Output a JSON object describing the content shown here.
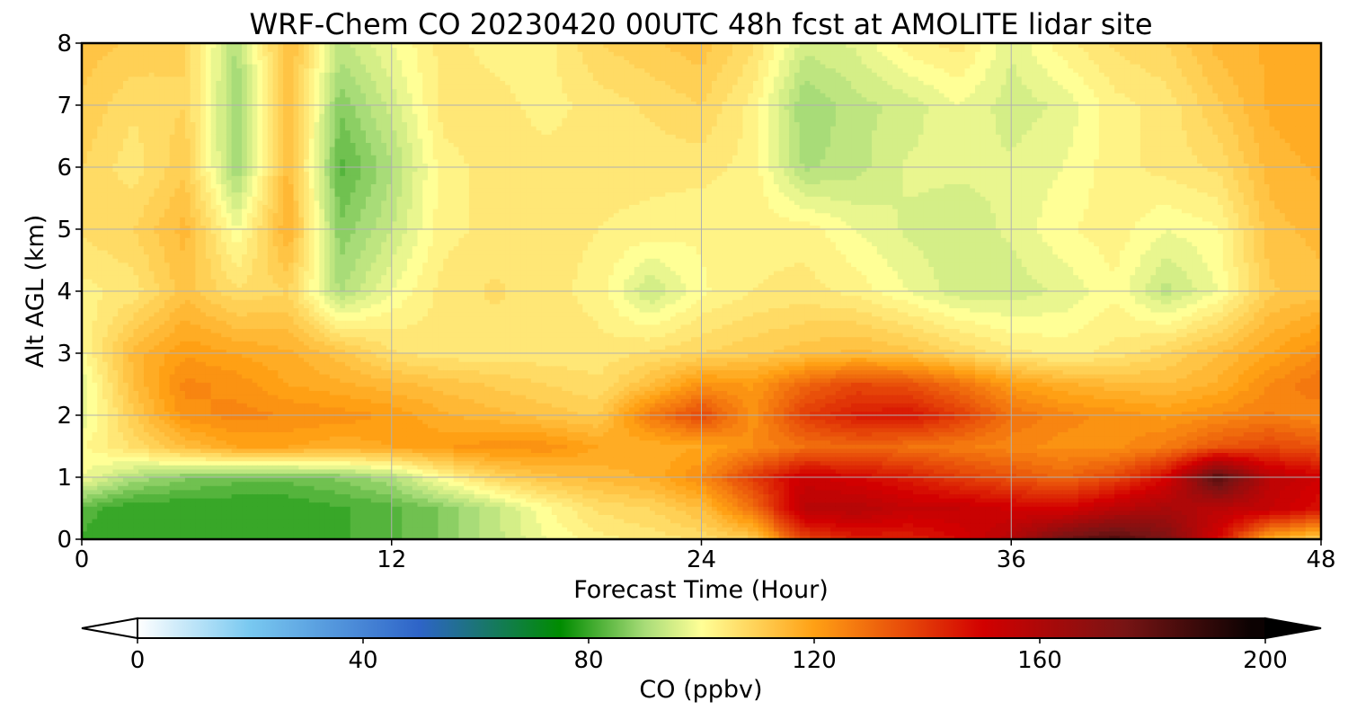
{
  "chart_data": {
    "type": "heatmap",
    "title": "WRF-Chem CO  20230420 00UTC 48h fcst at AMOLITE lidar site",
    "xlabel": "Forecast Time (Hour)",
    "ylabel": "Alt AGL (km)",
    "xlim": [
      0,
      48
    ],
    "ylim": [
      0,
      8
    ],
    "x_ticks": [
      "0",
      "12",
      "24",
      "36",
      "48"
    ],
    "y_ticks": [
      "0",
      "1",
      "2",
      "3",
      "4",
      "5",
      "6",
      "7",
      "8"
    ],
    "grid": true,
    "colorbar": {
      "label": "CO  (ppbv)",
      "range": [
        0,
        200
      ],
      "extend": "both",
      "ticks": [
        "0",
        "40",
        "80",
        "120",
        "160",
        "200"
      ],
      "stops": [
        {
          "value": 0,
          "color": "#ffffff"
        },
        {
          "value": 20,
          "color": "#78c8f0"
        },
        {
          "value": 50,
          "color": "#2e64c8"
        },
        {
          "value": 75,
          "color": "#008c00"
        },
        {
          "value": 90,
          "color": "#a8dc78"
        },
        {
          "value": 100,
          "color": "#ffff96"
        },
        {
          "value": 120,
          "color": "#ffa014"
        },
        {
          "value": 150,
          "color": "#d20000"
        },
        {
          "value": 175,
          "color": "#781414"
        },
        {
          "value": 200,
          "color": "#000000"
        }
      ]
    },
    "x_hours": [
      0,
      2,
      4,
      6,
      8,
      10,
      12,
      14,
      16,
      18,
      20,
      22,
      24,
      26,
      28,
      30,
      32,
      34,
      36,
      38,
      40,
      42,
      44,
      46,
      48
    ],
    "z_km": [
      0,
      0.5,
      1,
      1.5,
      2,
      2.5,
      3,
      4,
      5,
      6,
      7,
      8
    ],
    "values_ppbv": [
      [
        82,
        80,
        80,
        80,
        80,
        82,
        84,
        88,
        94,
        100,
        104,
        106,
        108,
        112,
        138,
        145,
        145,
        150,
        160,
        178,
        185,
        175,
        150,
        118,
        110
      ],
      [
        84,
        80,
        80,
        80,
        80,
        82,
        84,
        88,
        94,
        102,
        108,
        110,
        115,
        130,
        158,
        160,
        155,
        155,
        152,
        150,
        158,
        163,
        158,
        155,
        148
      ],
      [
        100,
        92,
        88,
        86,
        86,
        88,
        92,
        102,
        110,
        114,
        116,
        118,
        125,
        140,
        154,
        150,
        146,
        140,
        136,
        132,
        138,
        150,
        185,
        158,
        152
      ],
      [
        102,
        108,
        115,
        120,
        120,
        118,
        120,
        122,
        124,
        124,
        120,
        118,
        120,
        125,
        130,
        132,
        130,
        128,
        126,
        124,
        124,
        128,
        135,
        138,
        135
      ],
      [
        98,
        112,
        124,
        126,
        125,
        124,
        122,
        118,
        116,
        114,
        112,
        128,
        138,
        124,
        140,
        146,
        148,
        140,
        130,
        126,
        124,
        122,
        125,
        128,
        125
      ],
      [
        98,
        115,
        126,
        124,
        120,
        118,
        116,
        114,
        112,
        110,
        108,
        115,
        124,
        122,
        132,
        138,
        136,
        130,
        122,
        118,
        116,
        115,
        118,
        125,
        130
      ],
      [
        102,
        116,
        122,
        120,
        118,
        114,
        108,
        106,
        106,
        106,
        106,
        108,
        110,
        112,
        114,
        116,
        114,
        110,
        106,
        104,
        106,
        110,
        115,
        120,
        125
      ],
      [
        104,
        106,
        114,
        108,
        110,
        92,
        100,
        106,
        108,
        106,
        104,
        95,
        102,
        105,
        106,
        104,
        100,
        96,
        96,
        98,
        102,
        94,
        100,
        112,
        114
      ],
      [
        108,
        110,
        116,
        100,
        118,
        88,
        95,
        104,
        106,
        106,
        105,
        104,
        103,
        104,
        104,
        100,
        97,
        96,
        98,
        102,
        104,
        100,
        102,
        114,
        116
      ],
      [
        110,
        106,
        112,
        90,
        116,
        84,
        92,
        104,
        106,
        106,
        106,
        106,
        106,
        104,
        92,
        94,
        98,
        98,
        98,
        100,
        104,
        106,
        108,
        116,
        118
      ],
      [
        112,
        108,
        110,
        90,
        116,
        88,
        96,
        106,
        106,
        104,
        106,
        108,
        110,
        104,
        90,
        94,
        96,
        100,
        96,
        98,
        104,
        106,
        112,
        118,
        120
      ],
      [
        114,
        112,
        110,
        92,
        116,
        94,
        100,
        106,
        104,
        104,
        110,
        112,
        114,
        108,
        96,
        98,
        104,
        106,
        98,
        104,
        108,
        110,
        116,
        118,
        120
      ]
    ]
  }
}
